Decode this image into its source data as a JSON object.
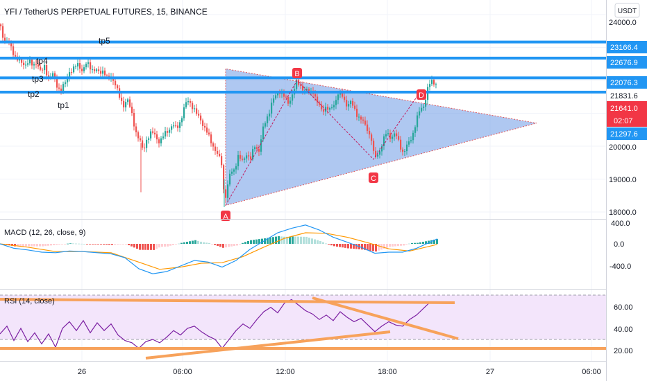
{
  "header": {
    "title": "YFI / TetherUS PERPETUAL FUTURES, 15, BINANCE",
    "currency": "USDT"
  },
  "time_axis": {
    "labels": [
      "26",
      "06:00",
      "12:00",
      "18:00",
      "27",
      "06:00"
    ]
  },
  "price_axis": {
    "labels": [
      "24000.0",
      "20000.0",
      "19000.0",
      "18000.0"
    ]
  },
  "levels": [
    {
      "value": 23166.4,
      "label": "23166.4"
    },
    {
      "value": 22676.9,
      "label": "22676.9"
    },
    {
      "value": 22076.3,
      "label": "22076.3"
    },
    {
      "value": 21641.0,
      "label": "21641.0"
    }
  ],
  "price_tags": {
    "last_price": "21831.6",
    "current_price": "21641.0",
    "countdown": "02:07",
    "lower_price": "21297.6"
  },
  "tp_labels": [
    "tp5",
    "tp4",
    "tp3",
    "tp2",
    "tp1"
  ],
  "pattern_points": [
    "A",
    "B",
    "C",
    "D"
  ],
  "macd": {
    "title": "MACD (12, 26, close, 9)",
    "axis": [
      "400.0",
      "0.0",
      "-400.0"
    ]
  },
  "rsi": {
    "title": "RSI (14, close)",
    "axis": [
      "60.00",
      "40.00",
      "20.00"
    ]
  },
  "colors": {
    "level_line": "#2196f3",
    "bull": "#26a69a",
    "bear": "#ef5350",
    "triangle": "#6d9be6",
    "macd_line": "#2196f3",
    "signal_line": "#ff9800",
    "rsi_line": "#7b1fa2",
    "trend": "#f7a25b",
    "rsi_band": "#f3e5fb",
    "red_tag": "#f23645"
  },
  "chart_data": [
    {
      "type": "candlestick",
      "title": "YFI / TetherUS PERPETUAL FUTURES, 15, BINANCE",
      "ylim": [
        17850,
        24200
      ],
      "x_ticks": [
        "26",
        "06:00",
        "12:00",
        "18:00",
        "27",
        "06:00"
      ],
      "close_path": [
        [
          -4,
          23700
        ],
        [
          0,
          23600
        ],
        [
          6,
          23200
        ],
        [
          11,
          23150
        ],
        [
          17,
          22900
        ],
        [
          22,
          22700
        ],
        [
          29,
          22500
        ],
        [
          35,
          22500
        ],
        [
          40,
          22600
        ],
        [
          46,
          22400
        ],
        [
          52,
          22600
        ],
        [
          58,
          22200
        ],
        [
          63,
          22400
        ],
        [
          69,
          22100
        ],
        [
          75,
          22150
        ],
        [
          81,
          21850
        ],
        [
          87,
          21700
        ],
        [
          93,
          21900
        ],
        [
          99,
          22300
        ],
        [
          106,
          22350
        ],
        [
          112,
          22500
        ],
        [
          118,
          22300
        ],
        [
          124,
          22500
        ],
        [
          130,
          22400
        ],
        [
          136,
          22300
        ],
        [
          142,
          22200
        ],
        [
          148,
          22350
        ],
        [
          154,
          22000
        ],
        [
          160,
          22100
        ],
        [
          166,
          21900
        ],
        [
          170,
          21500
        ],
        [
          176,
          21200
        ],
        [
          182,
          21500
        ],
        [
          188,
          21000
        ],
        [
          194,
          20500
        ],
        [
          200,
          20200
        ],
        [
          205,
          19800
        ],
        [
          211,
          20300
        ],
        [
          217,
          20400
        ],
        [
          223,
          20300
        ],
        [
          229,
          20150
        ],
        [
          235,
          20300
        ],
        [
          241,
          20500
        ],
        [
          247,
          20650
        ],
        [
          253,
          20500
        ],
        [
          259,
          20800
        ],
        [
          265,
          21200
        ],
        [
          271,
          21400
        ],
        [
          277,
          21200
        ],
        [
          283,
          20900
        ],
        [
          289,
          20800
        ],
        [
          295,
          20500
        ],
        [
          301,
          20200
        ],
        [
          307,
          20000
        ],
        [
          313,
          19700
        ],
        [
          319,
          19400
        ],
        [
          322,
          18350
        ],
        [
          326,
          18700
        ],
        [
          330,
          19100
        ],
        [
          336,
          19300
        ],
        [
          342,
          19700
        ],
        [
          348,
          19500
        ],
        [
          354,
          19800
        ],
        [
          360,
          19600
        ],
        [
          366,
          20000
        ],
        [
          372,
          19900
        ],
        [
          378,
          20500
        ],
        [
          384,
          20900
        ],
        [
          390,
          21300
        ],
        [
          396,
          21500
        ],
        [
          402,
          21700
        ],
        [
          408,
          21500
        ],
        [
          414,
          21300
        ],
        [
          420,
          21600
        ],
        [
          426,
          21900
        ],
        [
          432,
          21850
        ],
        [
          438,
          21700
        ],
        [
          444,
          21600
        ],
        [
          450,
          21700
        ],
        [
          456,
          21300
        ],
        [
          462,
          21100
        ],
        [
          468,
          21200
        ],
        [
          474,
          21050
        ],
        [
          480,
          21300
        ],
        [
          486,
          21600
        ],
        [
          492,
          21500
        ],
        [
          498,
          21300
        ],
        [
          504,
          21300
        ],
        [
          510,
          21100
        ],
        [
          516,
          20900
        ],
        [
          522,
          20700
        ],
        [
          528,
          20550
        ],
        [
          534,
          20200
        ],
        [
          538,
          19600
        ],
        [
          544,
          19800
        ],
        [
          550,
          20100
        ],
        [
          556,
          20400
        ],
        [
          562,
          20300
        ],
        [
          568,
          20350
        ],
        [
          574,
          20100
        ],
        [
          580,
          19800
        ],
        [
          586,
          20000
        ],
        [
          592,
          20300
        ],
        [
          598,
          20700
        ],
        [
          604,
          21100
        ],
        [
          610,
          21300
        ],
        [
          616,
          21800
        ],
        [
          622,
          22000
        ],
        [
          628,
          21900
        ]
      ],
      "pattern_points": [
        {
          "label": "A",
          "x": 325,
          "y": 18200
        },
        {
          "label": "B",
          "x": 428,
          "y": 22000
        },
        {
          "label": "C",
          "x": 538,
          "y": 19600
        },
        {
          "label": "D",
          "x": 607,
          "y": 21700
        }
      ],
      "triangle": [
        [
          325,
          22350
        ],
        [
          325,
          18200
        ],
        [
          773,
          20700
        ]
      ],
      "levels": [
        23166.4,
        22676.9,
        22076.3,
        21641.0
      ]
    },
    {
      "type": "line",
      "title": "MACD (12, 26, close, 9)",
      "ylim": [
        -560,
        420
      ],
      "series": [
        {
          "values": [
            [
              0,
              0
            ],
            [
              20,
              -80
            ],
            [
              40,
              -110
            ],
            [
              60,
              -150
            ],
            [
              80,
              -160
            ],
            [
              100,
              -130
            ],
            [
              120,
              -140
            ],
            [
              140,
              -160
            ],
            [
              160,
              -180
            ],
            [
              180,
              -250
            ],
            [
              200,
              -450
            ],
            [
              220,
              -540
            ],
            [
              240,
              -500
            ],
            [
              260,
              -400
            ],
            [
              280,
              -300
            ],
            [
              300,
              -330
            ],
            [
              320,
              -420
            ],
            [
              340,
              -300
            ],
            [
              360,
              -100
            ],
            [
              380,
              50
            ],
            [
              400,
              200
            ],
            [
              420,
              280
            ],
            [
              440,
              340
            ],
            [
              460,
              250
            ],
            [
              480,
              120
            ],
            [
              500,
              30
            ],
            [
              520,
              -60
            ],
            [
              540,
              -170
            ],
            [
              560,
              -150
            ],
            [
              580,
              -150
            ],
            [
              600,
              -80
            ],
            [
              630,
              90
            ]
          ]
        },
        {
          "values": [
            [
              0,
              0
            ],
            [
              40,
              -60
            ],
            [
              80,
              -140
            ],
            [
              120,
              -140
            ],
            [
              160,
              -160
            ],
            [
              200,
              -330
            ],
            [
              230,
              -460
            ],
            [
              260,
              -420
            ],
            [
              290,
              -350
            ],
            [
              320,
              -340
            ],
            [
              350,
              -230
            ],
            [
              380,
              -60
            ],
            [
              410,
              100
            ],
            [
              440,
              200
            ],
            [
              470,
              190
            ],
            [
              500,
              120
            ],
            [
              530,
              20
            ],
            [
              560,
              -90
            ],
            [
              590,
              -130
            ],
            [
              630,
              -10
            ]
          ]
        }
      ]
    },
    {
      "type": "line",
      "title": "RSI (14, close)",
      "ylim": [
        13,
        72
      ],
      "series": [
        {
          "values": [
            [
              0,
              35
            ],
            [
              10,
              42
            ],
            [
              20,
              29
            ],
            [
              30,
              40
            ],
            [
              40,
              28
            ],
            [
              50,
              36
            ],
            [
              60,
              26
            ],
            [
              70,
              35
            ],
            [
              80,
              23
            ],
            [
              90,
              40
            ],
            [
              100,
              46
            ],
            [
              110,
              38
            ],
            [
              120,
              47
            ],
            [
              130,
              36
            ],
            [
              140,
              45
            ],
            [
              150,
              38
            ],
            [
              160,
              44
            ],
            [
              170,
              34
            ],
            [
              180,
              29
            ],
            [
              190,
              27
            ],
            [
              200,
              22
            ],
            [
              210,
              28
            ],
            [
              220,
              30
            ],
            [
              230,
              27
            ],
            [
              240,
              32
            ],
            [
              250,
              38
            ],
            [
              260,
              34
            ],
            [
              270,
              40
            ],
            [
              280,
              42
            ],
            [
              290,
              37
            ],
            [
              300,
              33
            ],
            [
              310,
              30
            ],
            [
              320,
              22
            ],
            [
              330,
              30
            ],
            [
              340,
              38
            ],
            [
              350,
              44
            ],
            [
              360,
              40
            ],
            [
              370,
              48
            ],
            [
              380,
              55
            ],
            [
              390,
              59
            ],
            [
              400,
              54
            ],
            [
              410,
              63
            ],
            [
              420,
              66
            ],
            [
              430,
              61
            ],
            [
              440,
              56
            ],
            [
              450,
              53
            ],
            [
              460,
              48
            ],
            [
              470,
              52
            ],
            [
              480,
              47
            ],
            [
              490,
              55
            ],
            [
              500,
              50
            ],
            [
              510,
              46
            ],
            [
              520,
              49
            ],
            [
              530,
              43
            ],
            [
              540,
              37
            ],
            [
              550,
              42
            ],
            [
              560,
              46
            ],
            [
              570,
              43
            ],
            [
              580,
              42
            ],
            [
              590,
              48
            ],
            [
              600,
              52
            ],
            [
              610,
              58
            ],
            [
              620,
              64
            ],
            [
              630,
              63
            ]
          ]
        }
      ]
    }
  ]
}
